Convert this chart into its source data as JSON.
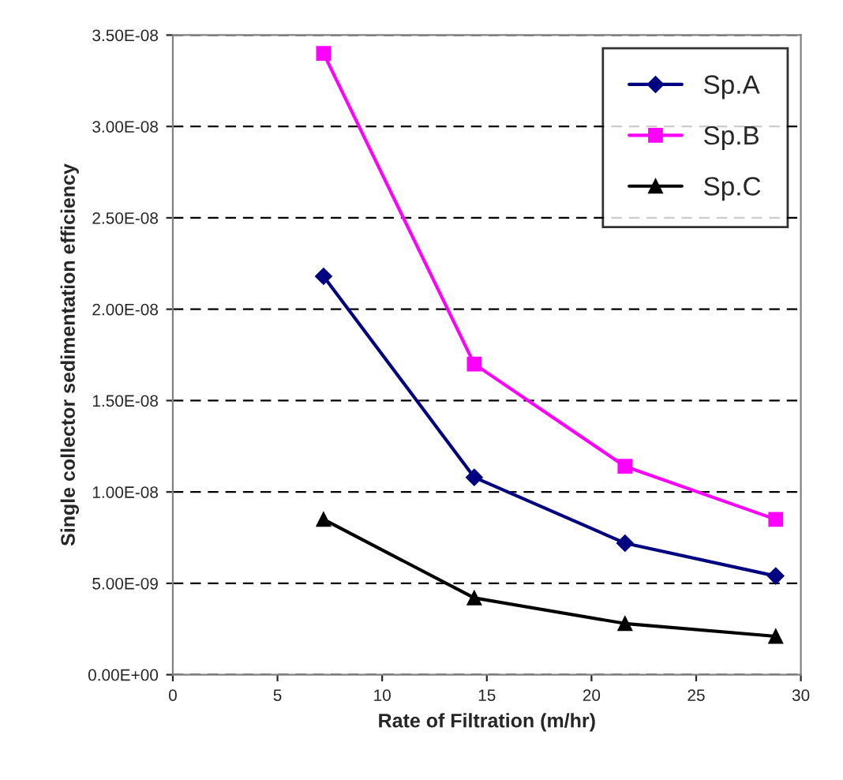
{
  "chart_data": {
    "type": "line",
    "xlabel": "Rate of Filtration (m/hr)",
    "ylabel": "Single collector sedimentation efficiency",
    "x": [
      7.2,
      14.4,
      21.6,
      28.8
    ],
    "series": [
      {
        "name": "Sp.A",
        "color": "#000080",
        "marker": "diamond",
        "values": [
          2.18e-08,
          1.08e-08,
          7.2e-09,
          5.4e-09
        ]
      },
      {
        "name": "Sp.B",
        "color": "#ff00ff",
        "marker": "square",
        "values": [
          3.4e-08,
          1.7e-08,
          1.14e-08,
          8.5e-09
        ]
      },
      {
        "name": "Sp.C",
        "color": "#000000",
        "marker": "triangle",
        "values": [
          8.5e-09,
          4.2e-09,
          2.8e-09,
          2.1e-09
        ]
      }
    ],
    "xlim": [
      0,
      30
    ],
    "xticks": [
      0,
      5,
      10,
      15,
      20,
      25,
      30
    ],
    "ylim": [
      0,
      3.5e-08
    ],
    "yticks": [
      {
        "value": 0,
        "label": "0.00E+00"
      },
      {
        "value": 5e-09,
        "label": "5.00E-09"
      },
      {
        "value": 1e-08,
        "label": "1.00E-08"
      },
      {
        "value": 1.5e-08,
        "label": "1.50E-08"
      },
      {
        "value": 2e-08,
        "label": "2.00E-08"
      },
      {
        "value": 2.5e-08,
        "label": "2.50E-08"
      },
      {
        "value": 3e-08,
        "label": "3.00E-08"
      },
      {
        "value": 3.5e-08,
        "label": "3.50E-08"
      }
    ],
    "grid": "y",
    "legend": "top right",
    "line_style": "solid"
  }
}
